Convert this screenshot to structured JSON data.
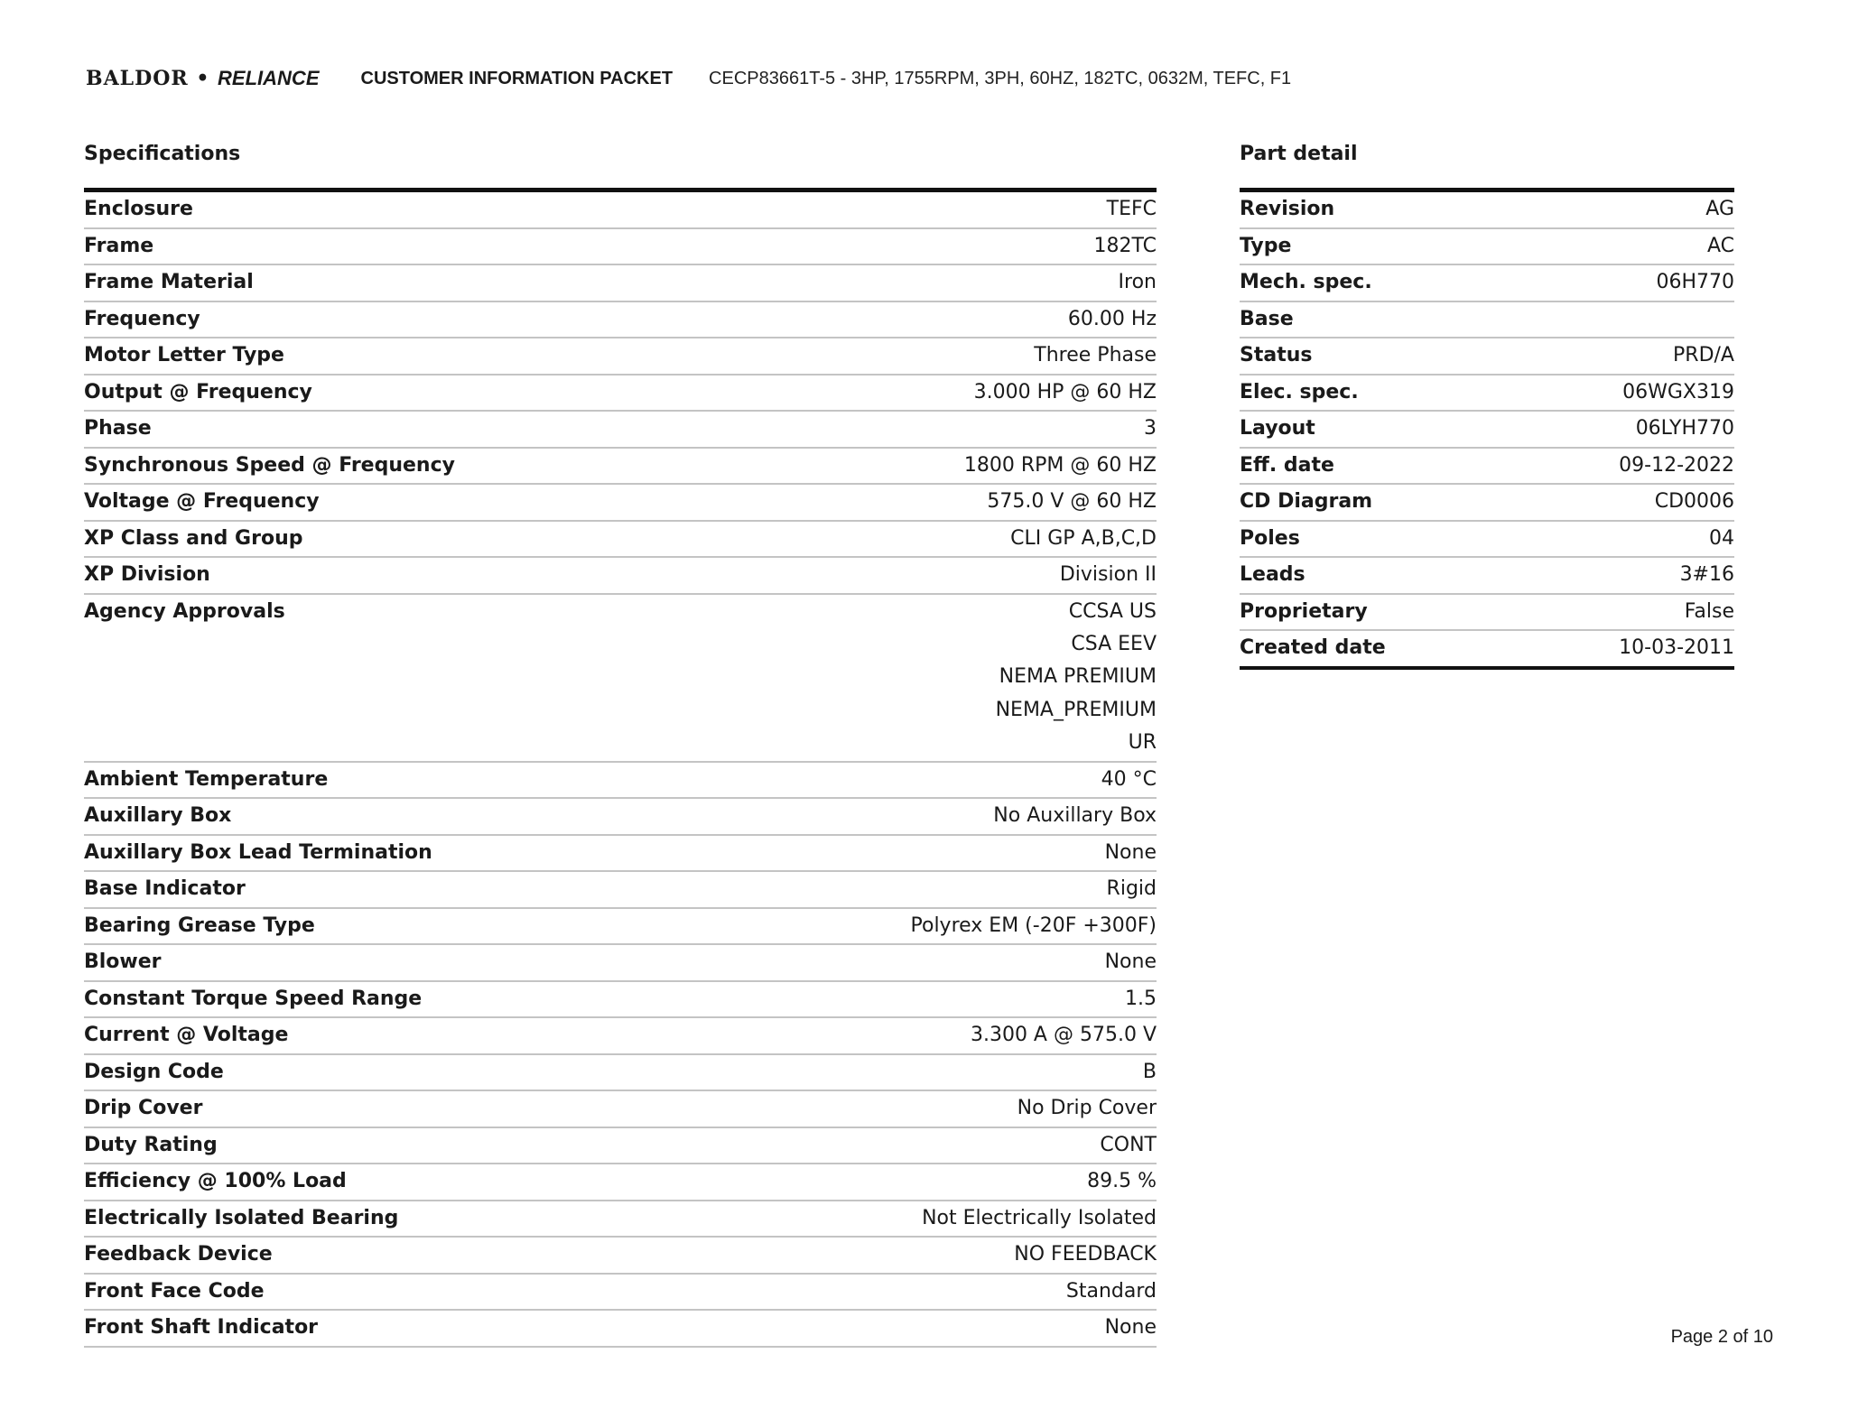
{
  "header": {
    "logo_text": "BALDOR • RELIANCE",
    "title": "CUSTOMER INFORMATION PACKET",
    "subtitle": "CECP83661T-5 - 3HP, 1755RPM, 3PH, 60HZ, 182TC, 0632M, TEFC, F1"
  },
  "specifications": {
    "title": "Specifications",
    "rows": [
      {
        "k": "Enclosure",
        "v": [
          "TEFC"
        ]
      },
      {
        "k": "Frame",
        "v": [
          "182TC"
        ]
      },
      {
        "k": "Frame Material",
        "v": [
          "Iron"
        ]
      },
      {
        "k": "Frequency",
        "v": [
          "60.00 Hz"
        ]
      },
      {
        "k": "Motor Letter Type",
        "v": [
          "Three Phase"
        ]
      },
      {
        "k": "Output @ Frequency",
        "v": [
          "3.000 HP @ 60 HZ"
        ]
      },
      {
        "k": "Phase",
        "v": [
          "3"
        ]
      },
      {
        "k": "Synchronous Speed @ Frequency",
        "v": [
          "1800 RPM @ 60 HZ"
        ]
      },
      {
        "k": "Voltage @ Frequency",
        "v": [
          "575.0 V @ 60 HZ"
        ]
      },
      {
        "k": "XP Class and Group",
        "v": [
          "CLI GP A,B,C,D"
        ]
      },
      {
        "k": "XP Division",
        "v": [
          "Division II"
        ]
      },
      {
        "k": "Agency Approvals",
        "v": [
          "CCSA US",
          "CSA EEV",
          "NEMA PREMIUM",
          "NEMA_PREMIUM",
          "UR"
        ]
      },
      {
        "k": "Ambient Temperature",
        "v": [
          "40 °C"
        ]
      },
      {
        "k": "Auxillary Box",
        "v": [
          "No Auxillary Box"
        ]
      },
      {
        "k": "Auxillary Box Lead Termination",
        "v": [
          "None"
        ]
      },
      {
        "k": "Base Indicator",
        "v": [
          "Rigid"
        ]
      },
      {
        "k": "Bearing Grease Type",
        "v": [
          "Polyrex EM (-20F +300F)"
        ]
      },
      {
        "k": "Blower",
        "v": [
          "None"
        ]
      },
      {
        "k": "Constant Torque Speed Range",
        "v": [
          "1.5"
        ]
      },
      {
        "k": "Current @ Voltage",
        "v": [
          "3.300 A @ 575.0 V"
        ]
      },
      {
        "k": "Design Code",
        "v": [
          "B"
        ]
      },
      {
        "k": "Drip Cover",
        "v": [
          "No Drip Cover"
        ]
      },
      {
        "k": "Duty Rating",
        "v": [
          "CONT"
        ]
      },
      {
        "k": "Efficiency @ 100% Load",
        "v": [
          "89.5 %"
        ]
      },
      {
        "k": "Electrically Isolated Bearing",
        "v": [
          "Not Electrically Isolated"
        ]
      },
      {
        "k": "Feedback Device",
        "v": [
          "NO FEEDBACK"
        ]
      },
      {
        "k": "Front Face Code",
        "v": [
          "Standard"
        ]
      },
      {
        "k": "Front Shaft Indicator",
        "v": [
          "None"
        ]
      }
    ]
  },
  "part_detail": {
    "title": "Part detail",
    "rows": [
      {
        "k": "Revision",
        "v": [
          "AG"
        ]
      },
      {
        "k": "Type",
        "v": [
          "AC"
        ]
      },
      {
        "k": "Mech. spec.",
        "v": [
          "06H770"
        ]
      },
      {
        "k": "Base",
        "v": [
          ""
        ]
      },
      {
        "k": "Status",
        "v": [
          "PRD/A"
        ]
      },
      {
        "k": "Elec. spec.",
        "v": [
          "06WGX319"
        ]
      },
      {
        "k": "Layout",
        "v": [
          "06LYH770"
        ]
      },
      {
        "k": "Eff. date",
        "v": [
          "09-12-2022"
        ]
      },
      {
        "k": "CD Diagram",
        "v": [
          "CD0006"
        ]
      },
      {
        "k": "Poles",
        "v": [
          "04"
        ]
      },
      {
        "k": "Leads",
        "v": [
          "3#16"
        ]
      },
      {
        "k": "Proprietary",
        "v": [
          "False"
        ]
      },
      {
        "k": "Created date",
        "v": [
          "10-03-2011"
        ]
      }
    ]
  },
  "footer": {
    "page": "Page 2 of 10"
  }
}
